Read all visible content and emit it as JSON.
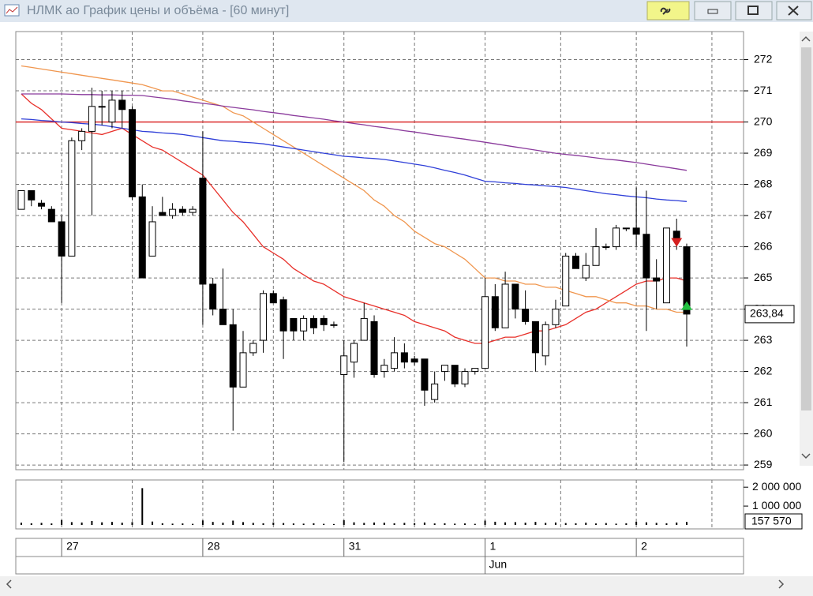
{
  "window": {
    "title": "НЛМК ао График цены и объёма - [60 минут]"
  },
  "chart_data": {
    "type": "candlestick",
    "categories": [
      null,
      null,
      null,
      null,
      "27",
      null,
      null,
      null,
      null,
      null,
      null,
      null,
      null,
      null,
      null,
      null,
      null,
      null,
      "28",
      null,
      null,
      null,
      null,
      null,
      null,
      null,
      null,
      null,
      null,
      null,
      null,
      null,
      "31",
      null,
      null,
      null,
      null,
      null,
      null,
      null,
      null,
      null,
      null,
      null,
      null,
      null,
      "1",
      null,
      null,
      null,
      null,
      null,
      null,
      null,
      null,
      null,
      null,
      null,
      null,
      null,
      null,
      "2",
      null,
      null,
      null,
      null,
      null
    ],
    "month_label": "Jun",
    "open": [
      267.2,
      267.8,
      267.4,
      267.2,
      266.8,
      265.7,
      269.4,
      269.7,
      270.5,
      270.0,
      270.7,
      270.4,
      267.6,
      265.7,
      267.1,
      267.0,
      267.2,
      267.1,
      268.2,
      264.8,
      264.0,
      263.5,
      261.5,
      262.6,
      263.0,
      264.5,
      264.3,
      263.7,
      263.3,
      263.7,
      263.7,
      263.5,
      261.9,
      262.3,
      263.0,
      263.6,
      262.0,
      262.1,
      262.6,
      262.4,
      262.4,
      261.1,
      262.0,
      262.2,
      261.6,
      262.0,
      262.1,
      264.4,
      263.4,
      264.8,
      264.0,
      263.6,
      262.5,
      263.5,
      264.1,
      265.7,
      265.0,
      265.4,
      266.0,
      266.0,
      266.6,
      266.6,
      266.4,
      265.0,
      264.2,
      266.5,
      266.0
    ],
    "high": [
      267.8,
      267.8,
      267.5,
      267.3,
      267.0,
      269.5,
      269.8,
      271.1,
      271.0,
      271.0,
      271.0,
      270.5,
      268.0,
      267.3,
      267.6,
      267.4,
      267.3,
      267.3,
      269.7,
      265.0,
      265.3,
      264.0,
      263.3,
      263.0,
      264.6,
      264.6,
      264.4,
      263.7,
      263.8,
      263.8,
      263.8,
      263.6,
      263.0,
      263.0,
      264.2,
      263.8,
      262.4,
      263.1,
      262.9,
      262.5,
      262.4,
      262.0,
      262.2,
      262.2,
      262.1,
      262.1,
      265.0,
      264.8,
      265.2,
      264.8,
      264.6,
      263.6,
      263.6,
      264.3,
      265.8,
      265.8,
      265.8,
      266.6,
      266.1,
      266.7,
      266.6,
      267.9,
      267.8,
      265.6,
      266.6,
      266.9,
      266.1
    ],
    "low": [
      267.2,
      267.3,
      267.2,
      266.8,
      264.2,
      265.7,
      269.1,
      267.0,
      269.9,
      269.8,
      269.8,
      267.5,
      265.0,
      265.7,
      267.0,
      266.9,
      267.0,
      267.0,
      263.5,
      263.8,
      263.5,
      260.1,
      261.5,
      262.5,
      262.6,
      264.2,
      262.4,
      263.0,
      263.0,
      263.2,
      263.3,
      263.4,
      259.1,
      261.8,
      263.0,
      261.8,
      261.8,
      262.0,
      262.1,
      262.2,
      260.9,
      261.0,
      261.7,
      261.5,
      261.5,
      261.9,
      262.1,
      263.3,
      263.4,
      263.7,
      263.5,
      262.0,
      262.2,
      263.4,
      264.1,
      265.3,
      264.9,
      265.4,
      265.9,
      265.9,
      266.5,
      266.0,
      263.3,
      264.0,
      264.2,
      265.9,
      262.8
    ],
    "close": [
      267.8,
      267.5,
      267.3,
      266.8,
      265.7,
      269.4,
      269.7,
      270.5,
      270.5,
      270.7,
      270.4,
      267.6,
      265.0,
      266.8,
      267.0,
      267.2,
      267.1,
      267.2,
      264.8,
      264.0,
      263.5,
      261.5,
      262.6,
      262.9,
      264.5,
      264.2,
      263.3,
      263.3,
      263.7,
      263.4,
      263.5,
      263.5,
      262.5,
      262.9,
      263.7,
      261.9,
      262.2,
      262.6,
      262.3,
      262.3,
      261.4,
      261.6,
      262.2,
      261.6,
      262.0,
      262.1,
      264.4,
      263.4,
      264.8,
      264.0,
      263.6,
      262.6,
      263.5,
      264.0,
      265.7,
      265.3,
      265.4,
      266.0,
      266.0,
      266.6,
      266.6,
      266.4,
      265.0,
      264.9,
      266.6,
      266.2,
      263.84
    ],
    "up_color": "#ffffff",
    "down_color": "#000000",
    "lines": [
      {
        "color": "#e8302a",
        "values": [
          270.9,
          270.6,
          270.4,
          270.1,
          269.8,
          269.75,
          269.7,
          269.65,
          269.6,
          269.7,
          269.8,
          269.6,
          269.4,
          269.2,
          269.1,
          268.9,
          268.7,
          268.5,
          268.3,
          267.9,
          267.5,
          267.1,
          266.8,
          266.4,
          266.0,
          265.8,
          265.6,
          265.3,
          265.1,
          264.9,
          264.8,
          264.6,
          264.4,
          264.3,
          264.2,
          264.1,
          264.0,
          263.9,
          263.8,
          263.6,
          263.5,
          263.4,
          263.3,
          263.1,
          263.0,
          262.9,
          262.9,
          263.0,
          263.1,
          263.1,
          263.2,
          263.3,
          263.3,
          263.4,
          263.5,
          263.7,
          263.9,
          264.0,
          264.2,
          264.4,
          264.6,
          264.8,
          264.9,
          264.9,
          265.0,
          265.0,
          264.9
        ]
      },
      {
        "color": "#f0964e",
        "values": [
          271.8,
          271.75,
          271.7,
          271.65,
          271.6,
          271.55,
          271.5,
          271.45,
          271.4,
          271.35,
          271.3,
          271.25,
          271.2,
          271.1,
          271.0,
          271.0,
          270.9,
          270.8,
          270.7,
          270.6,
          270.5,
          270.3,
          270.2,
          270.0,
          269.8,
          269.6,
          269.4,
          269.2,
          269.0,
          268.8,
          268.6,
          268.4,
          268.2,
          268.0,
          267.8,
          267.5,
          267.3,
          267.0,
          266.8,
          266.5,
          266.3,
          266.1,
          266.0,
          265.8,
          265.6,
          265.3,
          265.0,
          265.0,
          264.9,
          264.9,
          264.8,
          264.8,
          264.7,
          264.7,
          264.6,
          264.5,
          264.4,
          264.4,
          264.3,
          264.2,
          264.2,
          264.1,
          264.1,
          264.0,
          264.0,
          263.9,
          263.9
        ]
      },
      {
        "color": "#2f3fd8",
        "values": [
          270.1,
          270.08,
          270.05,
          270.03,
          270.0,
          269.98,
          269.95,
          269.93,
          269.9,
          269.85,
          269.8,
          269.75,
          269.7,
          269.68,
          269.65,
          269.63,
          269.6,
          269.55,
          269.5,
          269.45,
          269.4,
          269.38,
          269.35,
          269.33,
          269.3,
          269.25,
          269.2,
          269.15,
          269.1,
          269.05,
          269.0,
          268.95,
          268.9,
          268.88,
          268.85,
          268.83,
          268.8,
          268.75,
          268.7,
          268.65,
          268.6,
          268.53,
          268.45,
          268.38,
          268.3,
          268.2,
          268.1,
          268.08,
          268.05,
          268.03,
          268.0,
          267.98,
          267.95,
          267.93,
          267.9,
          267.85,
          267.8,
          267.75,
          267.7,
          267.67,
          267.63,
          267.6,
          267.57,
          267.53,
          267.5,
          267.48,
          267.45
        ]
      },
      {
        "color": "#8a3a9c",
        "values": [
          270.9,
          270.9,
          270.9,
          270.9,
          270.9,
          270.89,
          270.88,
          270.88,
          270.87,
          270.87,
          270.86,
          270.86,
          270.85,
          270.81,
          270.77,
          270.73,
          270.68,
          270.64,
          270.6,
          270.56,
          270.51,
          270.47,
          270.43,
          270.39,
          270.34,
          270.3,
          270.26,
          270.21,
          270.17,
          270.13,
          270.09,
          270.04,
          270.0,
          269.95,
          269.91,
          269.86,
          269.82,
          269.77,
          269.72,
          269.68,
          269.63,
          269.58,
          269.54,
          269.49,
          269.45,
          269.4,
          269.35,
          269.3,
          269.25,
          269.2,
          269.15,
          269.1,
          269.05,
          269.0,
          268.96,
          268.93,
          268.89,
          268.85,
          268.81,
          268.78,
          268.74,
          268.7,
          268.65,
          268.6,
          268.55,
          268.5,
          268.45
        ]
      }
    ],
    "hline": {
      "value": 270,
      "color": "#d81818"
    },
    "markers": [
      {
        "at": 65,
        "value": 266.15,
        "color": "#d42020",
        "shape": "down"
      },
      {
        "at": 66,
        "value": 264.1,
        "color": "#22c040",
        "shape": "up"
      }
    ],
    "ylim": [
      258.85,
      272.9
    ],
    "yticks": [
      259,
      260,
      261,
      262,
      263,
      264,
      265,
      266,
      267,
      268,
      269,
      270,
      271,
      272
    ],
    "last_price": 263.84,
    "last_price_label": "263,84",
    "volume": [
      120000,
      90000,
      110000,
      80000,
      260000,
      150000,
      130000,
      210000,
      140000,
      160000,
      120000,
      150000,
      1950000,
      180000,
      90000,
      70000,
      80000,
      60000,
      240000,
      160000,
      120000,
      230000,
      150000,
      110000,
      90000,
      130000,
      100000,
      80000,
      70000,
      90000,
      60000,
      50000,
      250000,
      140000,
      110000,
      130000,
      120000,
      90000,
      110000,
      100000,
      130000,
      80000,
      90000,
      70000,
      80000,
      60000,
      230000,
      170000,
      140000,
      150000,
      120000,
      160000,
      110000,
      130000,
      100000,
      90000,
      120000,
      80000,
      100000,
      70000,
      90000,
      170000,
      140000,
      110000,
      90000,
      130000,
      157570
    ],
    "volume_color": "#000000",
    "vylim": [
      0,
      2300000
    ],
    "vyticks": [
      {
        "value": 2000000,
        "label": "2 000 000"
      },
      {
        "value": 1000000,
        "label": "1 000 000"
      }
    ],
    "last_volume": 157570,
    "last_volume_label": "157 570",
    "grid": true
  }
}
